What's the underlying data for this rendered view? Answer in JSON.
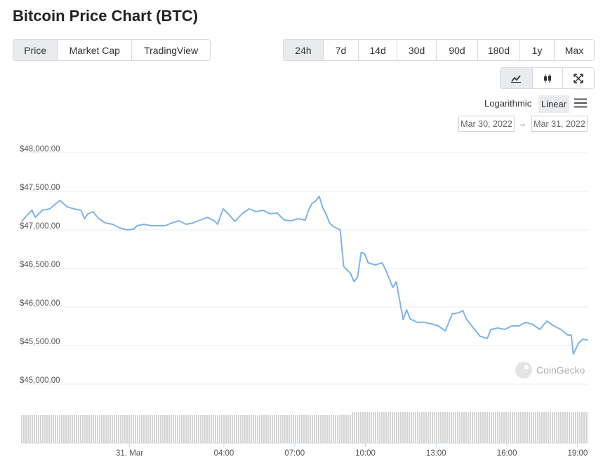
{
  "header": {
    "title": "Bitcoin Price Chart (BTC)"
  },
  "tabs": [
    "Price",
    "Market Cap",
    "TradingView"
  ],
  "ranges": [
    "24h",
    "7d",
    "14d",
    "30d",
    "90d",
    "180d",
    "1y",
    "Max"
  ],
  "scale_options": [
    "Logarithmic",
    "Linear"
  ],
  "date_range": {
    "from": "Mar 30, 2022",
    "separator": "→",
    "to": "Mar 31, 2022"
  },
  "watermark": "CoinGecko",
  "chart_data": {
    "type": "line",
    "color": "#7fb3e3",
    "grid": true,
    "xlim": [
      -4.6,
      19.45
    ],
    "xticks": [
      {
        "value": 0,
        "label": "31. Mar"
      },
      {
        "value": 4,
        "label": "04:00"
      },
      {
        "value": 7,
        "label": "07:00"
      },
      {
        "value": 10,
        "label": "10:00"
      },
      {
        "value": 13,
        "label": "13:00"
      },
      {
        "value": 16,
        "label": "16:00"
      },
      {
        "value": 19,
        "label": "19:00"
      }
    ],
    "ylim": [
      44800,
      48200
    ],
    "yticks": [
      {
        "value": 45000,
        "label": "$45,000.00"
      },
      {
        "value": 45500,
        "label": "$45,500.00"
      },
      {
        "value": 46000,
        "label": "$46,000.00"
      },
      {
        "value": 46500,
        "label": "$46,500.00"
      },
      {
        "value": 47000,
        "label": "$47,000.00"
      },
      {
        "value": 47500,
        "label": "$47,500.00"
      },
      {
        "value": 48000,
        "label": "$48,000.00"
      }
    ],
    "x": [
      -4.58,
      -4.29,
      -4.14,
      -3.99,
      -3.7,
      -3.39,
      -3.1,
      -2.95,
      -2.65,
      -2.36,
      -2.06,
      -1.91,
      -1.76,
      -1.55,
      -1.31,
      -1.02,
      -0.72,
      -0.42,
      -0.13,
      0.17,
      0.32,
      0.61,
      0.91,
      1.21,
      1.5,
      1.8,
      2.1,
      2.4,
      2.69,
      2.99,
      3.29,
      3.59,
      3.73,
      3.97,
      4.18,
      4.47,
      4.77,
      5.07,
      5.37,
      5.66,
      5.96,
      6.26,
      6.56,
      6.85,
      7.15,
      7.45,
      7.59,
      7.74,
      7.89,
      8.04,
      8.19,
      8.33,
      8.48,
      8.63,
      8.93,
      9.08,
      9.37,
      9.52,
      9.67,
      9.82,
      9.97,
      10.12,
      10.42,
      10.71,
      10.86,
      11.16,
      11.31,
      11.6,
      11.75,
      11.9,
      12.2,
      12.49,
      12.79,
      13.09,
      13.39,
      13.68,
      13.98,
      14.13,
      14.28,
      14.58,
      14.87,
      15.17,
      15.32,
      15.61,
      15.91,
      16.21,
      16.51,
      16.8,
      17.1,
      17.4,
      17.69,
      17.99,
      18.29,
      18.58,
      18.73,
      18.82,
      19.03,
      19.2,
      19.44
    ],
    "values": [
      47064,
      47164,
      47209,
      47118,
      47209,
      47227,
      47300,
      47336,
      47255,
      47227,
      47209,
      47100,
      47164,
      47191,
      47100,
      47045,
      47027,
      46982,
      46955,
      46964,
      47009,
      47027,
      47009,
      47009,
      47009,
      47045,
      47073,
      47027,
      47045,
      47082,
      47118,
      47073,
      47027,
      47227,
      47164,
      47064,
      47164,
      47227,
      47191,
      47209,
      47164,
      47173,
      47082,
      47073,
      47100,
      47082,
      47209,
      47300,
      47327,
      47391,
      47245,
      47164,
      47045,
      47000,
      46955,
      46482,
      46391,
      46282,
      46345,
      46664,
      46645,
      46527,
      46500,
      46527,
      46436,
      46209,
      46282,
      45791,
      45918,
      45800,
      45755,
      45755,
      45736,
      45709,
      45645,
      45864,
      45882,
      45909,
      45800,
      45682,
      45573,
      45545,
      45664,
      45682,
      45664,
      45709,
      45709,
      45755,
      45727,
      45664,
      45773,
      45709,
      45664,
      45591,
      45591,
      45345,
      45482,
      45536,
      45527
    ]
  }
}
